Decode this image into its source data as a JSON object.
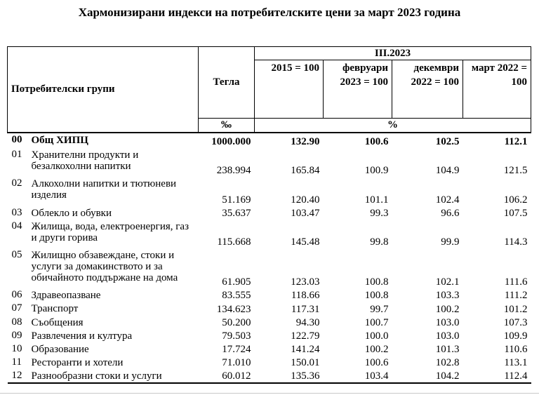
{
  "title": "Хармонизирани индекси на потребителските цени за март 2023 година",
  "table": {
    "header": {
      "consumer_groups": "Потребителски групи",
      "weights": "Тегла",
      "period": "III.2023",
      "subheaders": {
        "base_2015": "2015 = 100",
        "prev_month": "февруари\n2023 = 100",
        "dec_prev_year": "декември\n2022 = 100",
        "same_month_prev_year": "март 2022 =\n100"
      },
      "units": {
        "weights_unit": "‰",
        "index_unit": "%"
      }
    },
    "rows": [
      {
        "code": "00",
        "label": "Общ ХИПЦ",
        "weight": "1000.000",
        "index_2015": "132.90",
        "index_feb_2023": "100.6",
        "index_dec_2022": "102.5",
        "index_mar_2022": "112.1",
        "bold": true
      },
      {
        "code": "01",
        "label": "Хранителни продукти и\nбезалкохолни напитки",
        "weight": "238.994",
        "index_2015": "165.84",
        "index_feb_2023": "100.9",
        "index_dec_2022": "104.9",
        "index_mar_2022": "121.5",
        "bold": false
      },
      {
        "code": "02",
        "label": "Алкохолни напитки и тютюневи\nизделия",
        "weight": "51.169",
        "index_2015": "120.40",
        "index_feb_2023": "101.1",
        "index_dec_2022": "102.4",
        "index_mar_2022": "106.2",
        "bold": false
      },
      {
        "code": "03",
        "label": "Облекло и обувки",
        "weight": "35.637",
        "index_2015": "103.47",
        "index_feb_2023": "99.3",
        "index_dec_2022": "96.6",
        "index_mar_2022": "107.5",
        "bold": false
      },
      {
        "code": "04",
        "label": "Жилища, вода, електроенергия, газ\nи други горива",
        "weight": "115.668",
        "index_2015": "145.48",
        "index_feb_2023": "99.8",
        "index_dec_2022": "99.9",
        "index_mar_2022": "114.3",
        "bold": false
      },
      {
        "code": "05",
        "label": "Жилищно обзавеждане, стоки и\nуслуги за домакинството и за\nобичайното поддържане на дома",
        "weight": "61.905",
        "index_2015": "123.03",
        "index_feb_2023": "100.8",
        "index_dec_2022": "102.1",
        "index_mar_2022": "111.6",
        "bold": false
      },
      {
        "code": "06",
        "label": "Здравеопазване",
        "weight": "83.555",
        "index_2015": "118.66",
        "index_feb_2023": "100.8",
        "index_dec_2022": "103.3",
        "index_mar_2022": "111.2",
        "bold": false
      },
      {
        "code": "07",
        "label": "Транспорт",
        "weight": "134.623",
        "index_2015": "117.31",
        "index_feb_2023": "99.7",
        "index_dec_2022": "100.2",
        "index_mar_2022": "101.2",
        "bold": false
      },
      {
        "code": "08",
        "label": "Съобщения",
        "weight": "50.200",
        "index_2015": "94.30",
        "index_feb_2023": "100.7",
        "index_dec_2022": "103.0",
        "index_mar_2022": "107.3",
        "bold": false
      },
      {
        "code": "09",
        "label": "Развлечения и култура",
        "weight": "79.503",
        "index_2015": "122.79",
        "index_feb_2023": "100.0",
        "index_dec_2022": "103.0",
        "index_mar_2022": "109.9",
        "bold": false
      },
      {
        "code": "10",
        "label": "Образование",
        "weight": "17.724",
        "index_2015": "141.24",
        "index_feb_2023": "100.2",
        "index_dec_2022": "101.3",
        "index_mar_2022": "110.6",
        "bold": false
      },
      {
        "code": "11",
        "label": "Ресторанти и хотели",
        "weight": "71.010",
        "index_2015": "150.01",
        "index_feb_2023": "100.6",
        "index_dec_2022": "102.8",
        "index_mar_2022": "113.1",
        "bold": false
      },
      {
        "code": "12",
        "label": "Разнообразни стоки и услуги",
        "weight": "60.012",
        "index_2015": "135.36",
        "index_feb_2023": "103.4",
        "index_dec_2022": "104.2",
        "index_mar_2022": "112.4",
        "bold": false
      }
    ]
  }
}
